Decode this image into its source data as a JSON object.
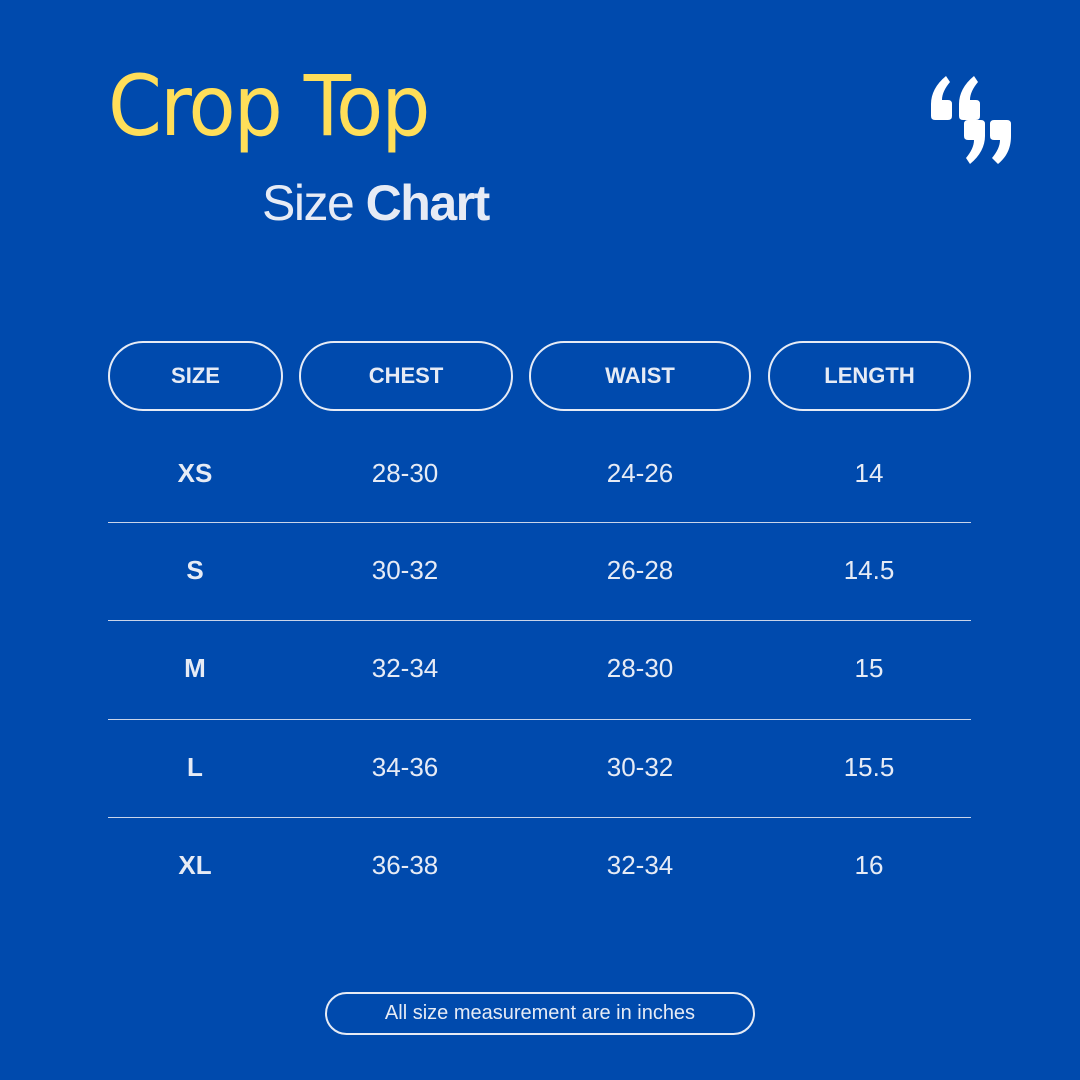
{
  "title": "Crop Top",
  "subtitle_light": "Size",
  "subtitle_bold": "Chart",
  "quote_icon": "quotation-marks-icon",
  "colors": {
    "background": "#004aad",
    "title": "#ffde59",
    "text": "#e6ebf5"
  },
  "table": {
    "headers": [
      "SIZE",
      "CHEST",
      "WAIST",
      "LENGTH"
    ],
    "rows": [
      [
        "XS",
        "28-30",
        "24-26",
        "14"
      ],
      [
        "S",
        "30-32",
        "26-28",
        "14.5"
      ],
      [
        "M",
        "32-34",
        "28-30",
        "15"
      ],
      [
        "L",
        "34-36",
        "30-32",
        "15.5"
      ],
      [
        "XL",
        "36-38",
        "32-34",
        "16"
      ]
    ]
  },
  "footer": "All size measurement are in inches"
}
